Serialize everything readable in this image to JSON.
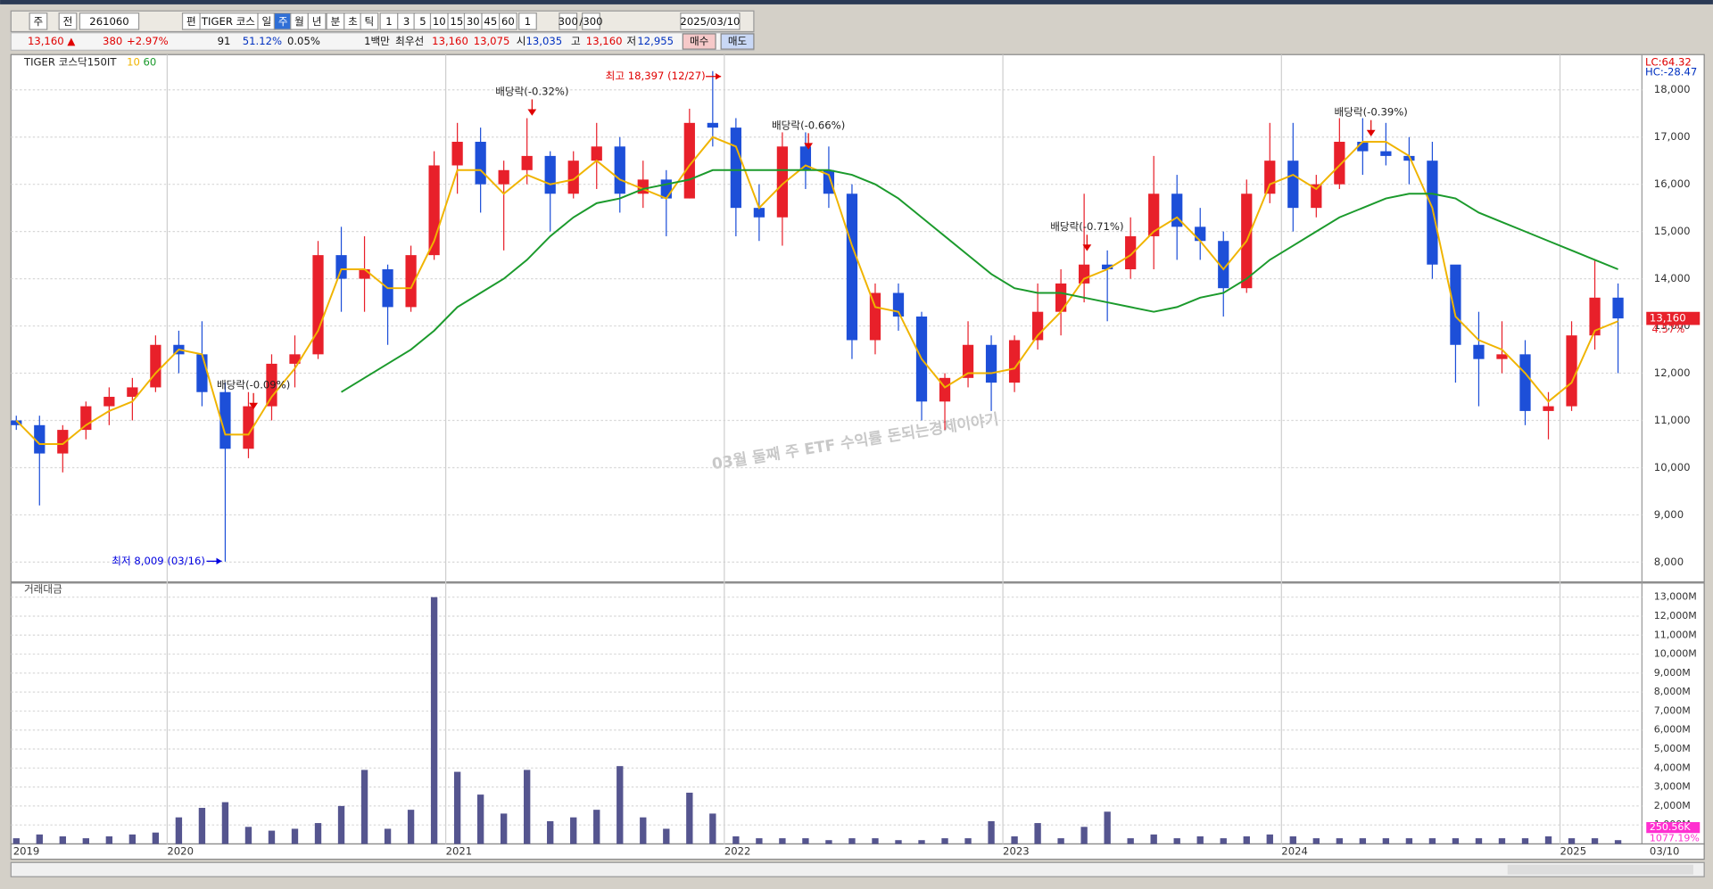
{
  "toolbar": {
    "row1": [
      "주",
      "전",
      "261060",
      "TIGER 코스",
      "편",
      "일",
      "주",
      "월",
      "년",
      "분",
      "초",
      "틱",
      "1",
      "3",
      "5",
      "10",
      "15",
      "30",
      "45",
      "60",
      "1",
      "300",
      "/300",
      "2025/03/10"
    ],
    "row2": [
      "13,160 ▲",
      "380",
      "+2.97%",
      "91",
      "51.12%",
      "0.05%",
      "1백만",
      "최우선",
      "13,160",
      "13,075",
      "시",
      "13,035",
      "고",
      "13,160",
      "저",
      "12,955",
      "매수",
      "매도"
    ]
  },
  "chart_data": {
    "type": "candlestick",
    "name": "TIGER 코스닥150IT",
    "categories": [
      "2019",
      null,
      null,
      null,
      null,
      null,
      null,
      "2020",
      null,
      null,
      null,
      null,
      null,
      null,
      null,
      null,
      null,
      null,
      null,
      "2021",
      null,
      null,
      null,
      null,
      null,
      null,
      null,
      null,
      null,
      null,
      null,
      "2022",
      null,
      null,
      null,
      null,
      null,
      null,
      null,
      null,
      null,
      null,
      null,
      "2023",
      null,
      null,
      null,
      null,
      null,
      null,
      null,
      null,
      null,
      null,
      null,
      "2024",
      null,
      null,
      null,
      null,
      null,
      null,
      null,
      null,
      null,
      null,
      null,
      "2025",
      null,
      null
    ],
    "last_date": "03/10",
    "open": [
      11000,
      10900,
      10300,
      10800,
      11300,
      11500,
      11700,
      12600,
      12400,
      11600,
      10400,
      11300,
      12200,
      12400,
      14500,
      14000,
      14200,
      13400,
      14500,
      16400,
      16900,
      16000,
      16300,
      16600,
      15800,
      16500,
      16800,
      15800,
      16100,
      15700,
      17300,
      17200,
      15500,
      15300,
      16800,
      16300,
      15800,
      12700,
      13700,
      13200,
      11400,
      11900,
      12600,
      11800,
      12700,
      13300,
      13900,
      14300,
      14200,
      14900,
      15800,
      15100,
      14800,
      13800,
      15800,
      16500,
      15500,
      16000,
      16900,
      16700,
      16600,
      16500,
      14300,
      12600,
      12300,
      12400,
      11200,
      11300,
      12800,
      13600
    ],
    "high": [
      11100,
      11100,
      10900,
      11400,
      11700,
      11900,
      12800,
      12900,
      13100,
      11800,
      11600,
      12400,
      12800,
      14800,
      15100,
      14900,
      14300,
      14700,
      16700,
      17300,
      17200,
      16500,
      17400,
      16700,
      16700,
      17300,
      17000,
      16500,
      16300,
      17600,
      18397,
      17400,
      16000,
      17100,
      17100,
      16800,
      16000,
      13900,
      13900,
      13300,
      12000,
      13100,
      12800,
      12800,
      13900,
      14200,
      15800,
      14600,
      15300,
      16600,
      16200,
      15500,
      15000,
      16100,
      17300,
      17300,
      16200,
      17400,
      17400,
      17300,
      17000,
      16900,
      14200,
      13300,
      13100,
      12700,
      11600,
      13100,
      14400,
      13900
    ],
    "low": [
      10800,
      9200,
      9900,
      10600,
      10900,
      11000,
      11600,
      12000,
      11300,
      8009,
      10200,
      11000,
      11700,
      12300,
      13300,
      13300,
      12600,
      13300,
      14400,
      15800,
      15400,
      14600,
      16000,
      15000,
      15700,
      15900,
      15400,
      15500,
      14900,
      15700,
      16800,
      14900,
      14800,
      14700,
      15900,
      15500,
      12300,
      12400,
      12900,
      11000,
      10800,
      11700,
      11200,
      11600,
      12500,
      12800,
      13500,
      13100,
      14000,
      14200,
      14400,
      14400,
      13200,
      13700,
      15600,
      15000,
      15300,
      15900,
      16200,
      16400,
      16000,
      14000,
      11800,
      11300,
      12000,
      10900,
      10600,
      11200,
      12500,
      12000
    ],
    "close": [
      10900,
      10300,
      10800,
      11300,
      11500,
      11700,
      12600,
      12400,
      11600,
      10400,
      11300,
      12200,
      12400,
      14500,
      14000,
      14200,
      13400,
      14500,
      16400,
      16900,
      16000,
      16300,
      16600,
      15800,
      16500,
      16800,
      15800,
      16100,
      15700,
      17300,
      17200,
      15500,
      15300,
      16800,
      16300,
      15800,
      12700,
      13700,
      13200,
      11400,
      11900,
      12600,
      11800,
      12700,
      13300,
      13900,
      14300,
      14200,
      14900,
      15800,
      15100,
      14800,
      13800,
      15800,
      16500,
      15500,
      16000,
      16900,
      16700,
      16600,
      16500,
      14300,
      12600,
      12300,
      12400,
      11200,
      11300,
      12800,
      13600,
      13160
    ],
    "up_color": "#e8202a",
    "down_color": "#1d4fd8",
    "series": [
      {
        "name": "10",
        "color": "#f0b400",
        "values": [
          11000,
          10500,
          10500,
          10900,
          11200,
          11400,
          12000,
          12500,
          12400,
          10700,
          10700,
          11500,
          12100,
          12900,
          14200,
          14200,
          13800,
          13800,
          14800,
          16300,
          16300,
          15800,
          16200,
          16000,
          16100,
          16500,
          16100,
          15900,
          15700,
          16400,
          17000,
          16800,
          15500,
          16000,
          16400,
          16200,
          14700,
          13400,
          13300,
          12300,
          11700,
          12000,
          12000,
          12100,
          12800,
          13300,
          14000,
          14200,
          14500,
          15000,
          15300,
          14800,
          14200,
          14800,
          16000,
          16200,
          15900,
          16400,
          16900,
          16900,
          16600,
          15500,
          13200,
          12700,
          12500,
          12000,
          11400,
          11800,
          12900,
          13100
        ]
      },
      {
        "name": "60",
        "color": "#1b9a2c",
        "values": [
          null,
          null,
          null,
          null,
          null,
          null,
          null,
          null,
          null,
          null,
          null,
          null,
          null,
          null,
          11600,
          11900,
          12200,
          12500,
          12900,
          13400,
          13700,
          14000,
          14400,
          14900,
          15300,
          15600,
          15700,
          15900,
          16000,
          16100,
          16300,
          16300,
          16300,
          16300,
          16300,
          16300,
          16200,
          16000,
          15700,
          15300,
          14900,
          14500,
          14100,
          13800,
          13700,
          13700,
          13600,
          13500,
          13400,
          13300,
          13400,
          13600,
          13700,
          14000,
          14400,
          14700,
          15000,
          15300,
          15500,
          15700,
          15800,
          15800,
          15700,
          15400,
          15200,
          15000,
          14800,
          14600,
          14400,
          14200
        ]
      }
    ],
    "ylim": [
      7650,
      18700
    ],
    "yticks": [
      {
        "value": 8000,
        "label": "8,000"
      },
      {
        "value": 9000,
        "label": "9,000"
      },
      {
        "value": 10000,
        "label": "10,000"
      },
      {
        "value": 11000,
        "label": "11,000"
      },
      {
        "value": 12000,
        "label": "12,000"
      },
      {
        "value": 13000,
        "label": "13,000"
      },
      {
        "value": 14000,
        "label": "14,000"
      },
      {
        "value": 15000,
        "label": "15,000"
      },
      {
        "value": 16000,
        "label": "16,000"
      },
      {
        "value": 17000,
        "label": "17,000"
      },
      {
        "value": 18000,
        "label": "18,000"
      }
    ],
    "grid": true,
    "last_price": {
      "value": 13160,
      "label": "13,160"
    },
    "last_change": "4.57%",
    "indicator_labels": [
      "LC:64.32",
      "HC:-28.47"
    ],
    "annotations": [
      {
        "text": "최고 18,397 (12/27)",
        "color": "#e00000"
      },
      {
        "text": "최저 8,009 (03/16)",
        "color": "#0000e0"
      },
      {
        "text": "배당락(-0.09%)",
        "color": "#222222"
      },
      {
        "text": "배당락(-0.32%)",
        "color": "#222222"
      },
      {
        "text": "배당락(-0.66%)",
        "color": "#222222"
      },
      {
        "text": "배당락(-0.71%)",
        "color": "#222222"
      },
      {
        "text": "배당락(-0.39%)",
        "color": "#222222"
      }
    ],
    "watermark": "03월 둘째 주 ETF 수익률 돈되는경제이야기",
    "volume": {
      "title": "거래대금",
      "color": "#55558f",
      "values": [
        300,
        500,
        400,
        300,
        400,
        500,
        600,
        1400,
        1900,
        2200,
        900,
        700,
        800,
        1100,
        2000,
        3900,
        800,
        1800,
        13000,
        3800,
        2600,
        1600,
        3900,
        1200,
        1400,
        1800,
        4100,
        1400,
        800,
        2700,
        1600,
        400,
        300,
        300,
        300,
        200,
        300,
        300,
        200,
        200,
        300,
        300,
        1200,
        400,
        1100,
        300,
        900,
        1700,
        300,
        500,
        300,
        400,
        300,
        400,
        500,
        400,
        300,
        300,
        300,
        300,
        300,
        300,
        300,
        300,
        300,
        300,
        400,
        300,
        300,
        200
      ],
      "ylim": [
        0,
        13400
      ],
      "yticks": [
        {
          "value": 1000,
          "label": "1,000M"
        },
        {
          "value": 2000,
          "label": "2,000M"
        },
        {
          "value": 3000,
          "label": "3,000M"
        },
        {
          "value": 4000,
          "label": "4,000M"
        },
        {
          "value": 5000,
          "label": "5,000M"
        },
        {
          "value": 6000,
          "label": "6,000M"
        },
        {
          "value": 7000,
          "label": "7,000M"
        },
        {
          "value": 8000,
          "label": "8,000M"
        },
        {
          "value": 9000,
          "label": "9,000M"
        },
        {
          "value": 10000,
          "label": "10,000M"
        },
        {
          "value": 11000,
          "label": "11,000M"
        },
        {
          "value": 12000,
          "label": "12,000M"
        },
        {
          "value": 13000,
          "label": "13,000M"
        }
      ],
      "indicator_labels": [
        "250.56K",
        "1077.19%"
      ]
    }
  }
}
